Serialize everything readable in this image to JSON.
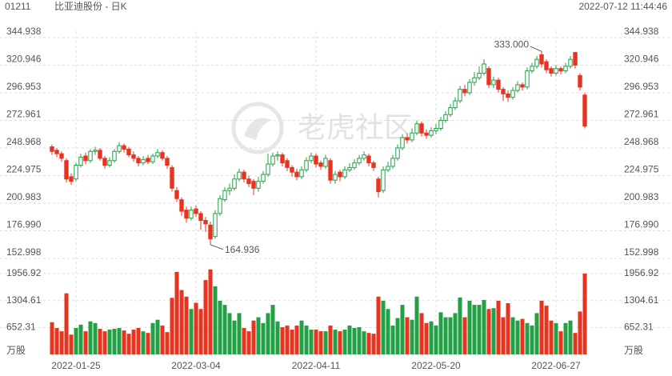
{
  "header": {
    "code": "01211",
    "name": "比亚迪股份 - 日K",
    "time": "2022-07-12 11:44:46"
  },
  "watermark": "老虎社区",
  "chart_data": {
    "type": "candlestick",
    "up_color": "#22a045",
    "down_color": "#e8331f",
    "categories": [
      null,
      null,
      null,
      null,
      null,
      "2022-01-25",
      null,
      null,
      null,
      null,
      null,
      null,
      null,
      null,
      null,
      null,
      null,
      null,
      null,
      null,
      null,
      null,
      null,
      null,
      null,
      null,
      null,
      null,
      null,
      null,
      "2022-03-04",
      null,
      null,
      null,
      null,
      null,
      null,
      null,
      null,
      null,
      null,
      null,
      null,
      null,
      null,
      null,
      null,
      null,
      null,
      null,
      null,
      null,
      null,
      null,
      null,
      "2022-04-11",
      null,
      null,
      null,
      null,
      null,
      null,
      null,
      null,
      null,
      null,
      null,
      null,
      null,
      null,
      null,
      null,
      null,
      null,
      null,
      null,
      null,
      null,
      null,
      null,
      "2022-05-20",
      null,
      null,
      null,
      null,
      null,
      null,
      null,
      null,
      null,
      null,
      null,
      null,
      null,
      null,
      null,
      null,
      null,
      null,
      null,
      null,
      null,
      null,
      null,
      null,
      "2022-06-27",
      null,
      null,
      null,
      null,
      null,
      null
    ],
    "open": [
      250,
      247,
      244,
      238,
      224,
      222,
      234,
      242,
      238,
      246,
      247,
      240,
      234,
      238,
      246,
      251,
      248,
      243,
      240,
      236,
      240,
      237,
      242,
      245,
      240,
      232,
      212,
      204,
      195,
      188,
      196,
      192,
      186,
      182,
      172,
      192,
      204,
      212,
      214,
      222,
      228,
      222,
      220,
      214,
      220,
      226,
      235,
      242,
      243,
      238,
      232,
      228,
      224,
      230,
      238,
      242,
      236,
      233,
      238,
      221,
      228,
      224,
      230,
      232,
      236,
      240,
      242,
      236,
      222,
      212,
      230,
      233,
      240,
      249,
      258,
      256,
      262,
      270,
      262,
      260,
      264,
      266,
      273,
      278,
      284,
      290,
      300,
      297,
      306,
      310,
      314,
      318,
      304,
      308,
      300,
      296,
      293,
      299,
      304,
      302,
      316,
      320,
      330,
      324,
      318,
      314,
      318,
      316,
      320,
      332,
      312,
      295
    ],
    "high": [
      252,
      249,
      246,
      240,
      227,
      236,
      244,
      245,
      248,
      250,
      249,
      242,
      241,
      248,
      254,
      253,
      250,
      246,
      242,
      242,
      243,
      244,
      248,
      247,
      242,
      234,
      215,
      206,
      198,
      198,
      199,
      194,
      189,
      185,
      195,
      208,
      215,
      218,
      226,
      231,
      230,
      225,
      222,
      224,
      229,
      244,
      245,
      246,
      245,
      240,
      234,
      231,
      233,
      241,
      245,
      244,
      238,
      243,
      240,
      229,
      230,
      233,
      236,
      239,
      243,
      246,
      244,
      238,
      224,
      233,
      237,
      243,
      252,
      261,
      262,
      266,
      273,
      272,
      265,
      267,
      270,
      276,
      281,
      287,
      293,
      303,
      304,
      309,
      315,
      320,
      326,
      320,
      311,
      310,
      302,
      299,
      302,
      307,
      306,
      319,
      323,
      329,
      333,
      326,
      320,
      321,
      320,
      323,
      329,
      332.5,
      314,
      297
    ],
    "low": [
      243,
      241,
      237,
      219,
      217,
      220,
      232,
      235,
      236,
      243,
      238,
      231,
      232,
      236,
      244,
      245,
      241,
      237,
      233,
      234,
      235,
      235,
      240,
      238,
      231,
      211,
      202,
      190,
      184,
      186,
      189,
      178,
      176,
      164.936,
      170,
      190,
      202,
      208,
      212,
      220,
      219,
      215,
      208,
      211,
      218,
      224,
      233,
      238,
      233,
      229,
      224,
      221,
      222,
      228,
      236,
      232,
      230,
      231,
      218,
      218,
      220,
      222,
      228,
      230,
      234,
      238,
      233,
      229,
      206,
      210,
      228,
      231,
      238,
      247,
      253,
      254,
      260,
      259,
      257,
      258,
      261,
      264,
      271,
      276,
      282,
      288,
      294,
      295,
      303,
      308,
      312,
      301,
      301,
      297,
      290,
      289,
      291,
      297,
      299,
      300,
      314,
      318,
      319,
      314,
      311,
      312,
      313,
      314,
      318,
      318,
      299,
      266
    ],
    "close": [
      246,
      244,
      240,
      222,
      220,
      234,
      241,
      238,
      246,
      247,
      240,
      234,
      238,
      246,
      251,
      248,
      243,
      240,
      236,
      239,
      237,
      242,
      245,
      240,
      234,
      214,
      205,
      194,
      188,
      195,
      192,
      186,
      183,
      170,
      192,
      205,
      212,
      214,
      222,
      228,
      222,
      218,
      214,
      220,
      226,
      235,
      242,
      243,
      236,
      232,
      228,
      224,
      230,
      238,
      242,
      235,
      233,
      240,
      221,
      226,
      224,
      230,
      232,
      236,
      240,
      243,
      236,
      232,
      211,
      230,
      233,
      240,
      249,
      258,
      256,
      262,
      270,
      262,
      260,
      264,
      266,
      273,
      278,
      284,
      290,
      300,
      297,
      306,
      310,
      314,
      322,
      304,
      308,
      300,
      296,
      293,
      299,
      304,
      302,
      316,
      320,
      326,
      322,
      317,
      314,
      318,
      316,
      320,
      326,
      321,
      302,
      268
    ],
    "volume": [
      780,
      640,
      560,
      1480,
      480,
      640,
      720,
      560,
      800,
      760,
      620,
      560,
      600,
      620,
      640,
      580,
      500,
      600,
      640,
      560,
      520,
      760,
      840,
      700,
      540,
      1370,
      2000,
      1560,
      1400,
      1100,
      1250,
      1100,
      1800,
      2060,
      1650,
      1300,
      1200,
      1000,
      820,
      1000,
      640,
      560,
      820,
      900,
      760,
      1000,
      1200,
      800,
      660,
      700,
      600,
      700,
      820,
      700,
      600,
      600,
      560,
      560,
      700,
      600,
      560,
      600,
      700,
      640,
      660,
      560,
      520,
      500,
      1400,
      1300,
      1100,
      700,
      880,
      1200,
      900,
      840,
      1400,
      1000,
      760,
      800,
      700,
      1020,
      900,
      900,
      1000,
      1380,
      900,
      1300,
      1200,
      1200,
      1320,
      1100,
      1120,
      1300,
      900,
      1240,
      900,
      820,
      860,
      760,
      700,
      1000,
      1300,
      1180,
      820,
      760,
      560,
      760,
      820,
      520,
      1040,
      1960
    ],
    "ylim": [
      152.998,
      344.938
    ],
    "yticks": [
      344.938,
      320.946,
      296.953,
      272.961,
      248.968,
      224.975,
      200.983,
      {
        "value": 176.99,
        "label": "176.990"
      },
      152.998
    ],
    "y2lim": [
      0,
      2074
    ],
    "y2ticks": [
      1956.92,
      1304.61,
      652.31,
      {
        "value": 0,
        "label": "万股"
      }
    ],
    "annotations": [
      {
        "label": "333.000",
        "value": 333
      },
      {
        "label": "164.936",
        "value": 164.936
      }
    ],
    "grid": true
  }
}
